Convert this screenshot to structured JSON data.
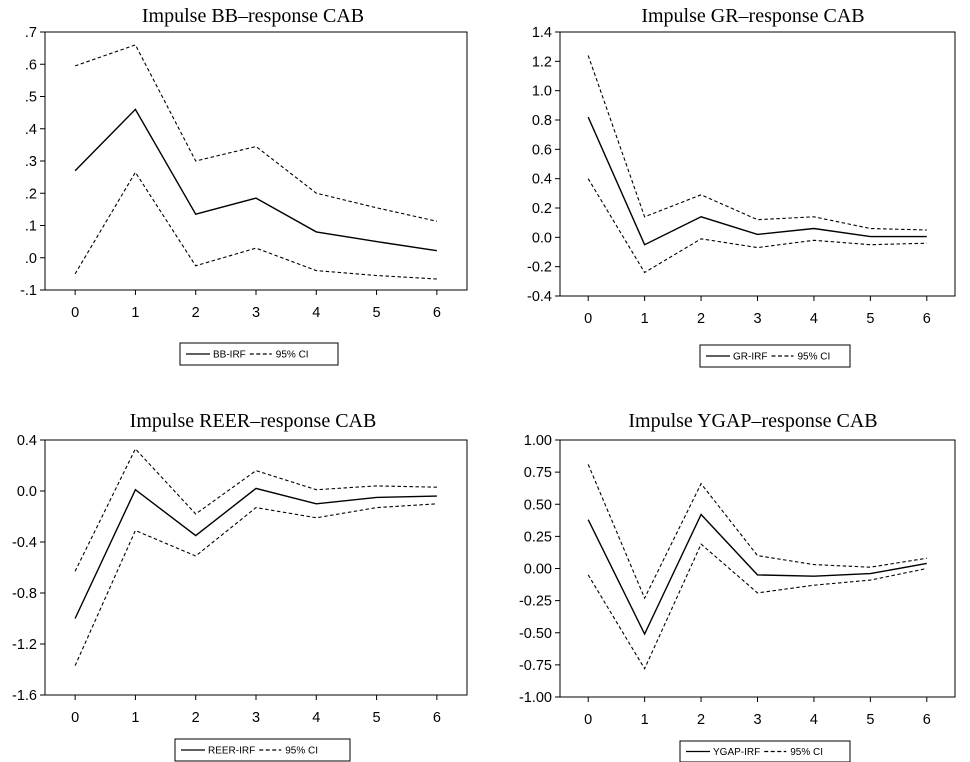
{
  "chart_data": [
    {
      "type": "line",
      "title": "Impulse BB–response CAB",
      "x": [
        0,
        1,
        2,
        3,
        4,
        5,
        6
      ],
      "xlim": [
        -0.5,
        6.5
      ],
      "ylim": [
        -0.1,
        0.7
      ],
      "y_ticks": [
        ".7",
        ".6",
        ".5",
        ".4",
        ".3",
        ".2",
        ".1",
        ".0",
        "-.1"
      ],
      "y_tick_values": [
        0.7,
        0.6,
        0.5,
        0.4,
        0.3,
        0.2,
        0.1,
        0.0,
        -0.1
      ],
      "series": [
        {
          "name": "BB-IRF",
          "style": "solid",
          "values": [
            0.27,
            0.46,
            0.135,
            0.185,
            0.08,
            0.05,
            0.022
          ]
        },
        {
          "name": "95% CI",
          "style": "dashed",
          "values": [
            0.595,
            0.66,
            0.3,
            0.345,
            0.2,
            0.155,
            0.113
          ]
        },
        {
          "style": "dashed",
          "values": [
            -0.05,
            0.265,
            -0.025,
            0.03,
            -0.04,
            -0.055,
            -0.066
          ]
        }
      ],
      "legend": {
        "items": [
          "BB-IRF",
          "95% CI"
        ],
        "placement": "bottom"
      },
      "grid": false
    },
    {
      "type": "line",
      "title": "Impulse GR–response CAB",
      "x": [
        0,
        1,
        2,
        3,
        4,
        5,
        6
      ],
      "xlim": [
        -0.5,
        6.5
      ],
      "ylim": [
        -0.4,
        1.4
      ],
      "y_ticks": [
        "1.4",
        "1.2",
        "1.0",
        "0.8",
        "0.6",
        "0.4",
        "0.2",
        "0.0",
        "-0.2",
        "-0.4"
      ],
      "y_tick_values": [
        1.4,
        1.2,
        1.0,
        0.8,
        0.6,
        0.4,
        0.2,
        0.0,
        -0.2,
        -0.4
      ],
      "series": [
        {
          "name": "GR-IRF",
          "style": "solid",
          "values": [
            0.82,
            -0.05,
            0.14,
            0.02,
            0.06,
            0.005,
            0.005
          ]
        },
        {
          "name": "95% CI",
          "style": "dashed",
          "values": [
            1.24,
            0.14,
            0.29,
            0.12,
            0.14,
            0.06,
            0.05
          ]
        },
        {
          "style": "dashed",
          "values": [
            0.4,
            -0.24,
            -0.01,
            -0.07,
            -0.02,
            -0.05,
            -0.04
          ]
        }
      ],
      "legend": {
        "items": [
          "GR-IRF",
          "95% CI"
        ],
        "placement": "bottom"
      },
      "grid": false
    },
    {
      "type": "line",
      "title": "Impulse REER–response CAB",
      "x": [
        0,
        1,
        2,
        3,
        4,
        5,
        6
      ],
      "xlim": [
        -0.5,
        6.5
      ],
      "ylim": [
        -1.6,
        0.4
      ],
      "y_ticks": [
        "0.4",
        "0.0",
        "-0.4",
        "-0.8",
        "-1.2",
        "-1.6"
      ],
      "y_tick_values": [
        0.4,
        0.0,
        -0.4,
        -0.8,
        -1.2,
        -1.6
      ],
      "series": [
        {
          "name": "REER-IRF",
          "style": "solid",
          "values": [
            -1.0,
            0.01,
            -0.35,
            0.02,
            -0.1,
            -0.05,
            -0.04
          ]
        },
        {
          "name": "95% CI",
          "style": "dashed",
          "values": [
            -0.63,
            0.33,
            -0.18,
            0.16,
            0.01,
            0.04,
            0.03
          ]
        },
        {
          "style": "dashed",
          "values": [
            -1.37,
            -0.31,
            -0.51,
            -0.13,
            -0.21,
            -0.13,
            -0.1
          ]
        }
      ],
      "legend": {
        "items": [
          "REER-IRF",
          "95% CI"
        ],
        "placement": "bottom"
      },
      "grid": false
    },
    {
      "type": "line",
      "title": "Impulse YGAP–response CAB",
      "x": [
        0,
        1,
        2,
        3,
        4,
        5,
        6
      ],
      "xlim": [
        -0.5,
        6.5
      ],
      "ylim": [
        -1.0,
        1.0
      ],
      "y_ticks": [
        "1.00",
        "0.75",
        "0.50",
        "0.25",
        "0.00",
        "-0.25",
        "-0.50",
        "-0.75",
        "-1.00"
      ],
      "y_tick_values": [
        1.0,
        0.75,
        0.5,
        0.25,
        0.0,
        -0.25,
        -0.5,
        -0.75,
        -1.0
      ],
      "series": [
        {
          "name": "YGAP-IRF",
          "style": "solid",
          "values": [
            0.38,
            -0.51,
            0.42,
            -0.05,
            -0.06,
            -0.04,
            0.04
          ]
        },
        {
          "name": "95% CI",
          "style": "dashed",
          "values": [
            0.81,
            -0.23,
            0.66,
            0.1,
            0.03,
            0.01,
            0.08
          ]
        },
        {
          "style": "dashed",
          "values": [
            -0.05,
            -0.78,
            0.19,
            -0.19,
            -0.13,
            -0.09,
            0.0
          ]
        }
      ],
      "legend": {
        "items": [
          "YGAP-IRF",
          "95% CI"
        ],
        "placement": "bottom"
      },
      "grid": false
    }
  ]
}
